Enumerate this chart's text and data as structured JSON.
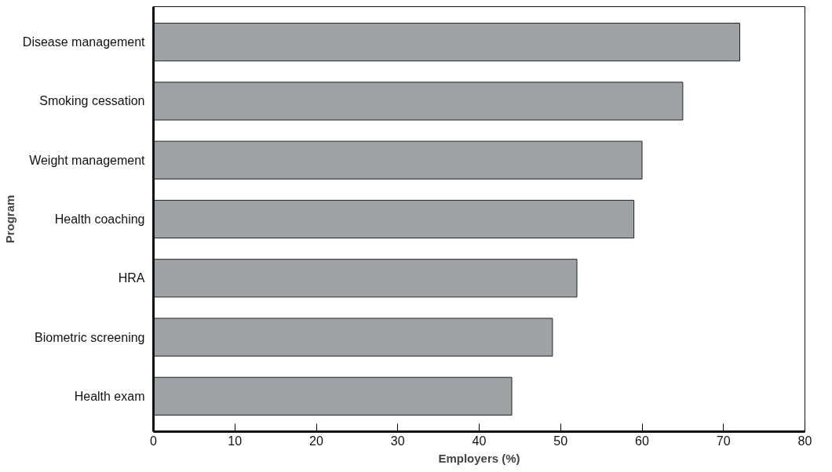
{
  "chart_data": {
    "type": "bar",
    "orientation": "horizontal",
    "xlabel": "Employers (%)",
    "ylabel": "Program",
    "categories": [
      "Disease management",
      "Smoking cessation",
      "Weight management",
      "Health coaching",
      "HRA",
      "Biometric screening",
      "Health exam"
    ],
    "values": [
      72,
      65,
      60,
      59,
      52,
      49,
      44
    ],
    "color": "#a0a1a5",
    "xlim": [
      0,
      80
    ],
    "xticks": [
      0,
      10,
      20,
      30,
      40,
      50,
      60,
      70,
      80
    ],
    "grid": false
  }
}
